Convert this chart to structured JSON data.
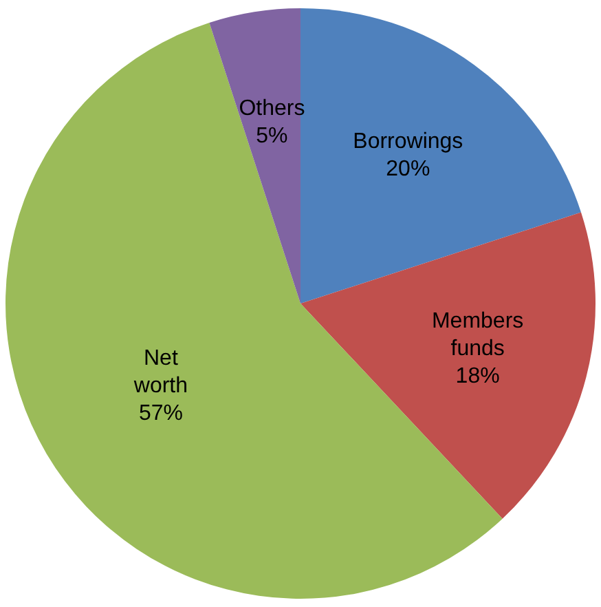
{
  "chart_data": {
    "type": "pie",
    "categories": [
      "Borrowings",
      "Members funds",
      "Net worth",
      "Others"
    ],
    "values": [
      20,
      18,
      57,
      5
    ],
    "colors": [
      "#4f81bd",
      "#c0504d",
      "#9bbb59",
      "#8064a2"
    ],
    "value_labels": [
      "20%",
      "18%",
      "57%",
      "5%"
    ],
    "legend": false
  }
}
